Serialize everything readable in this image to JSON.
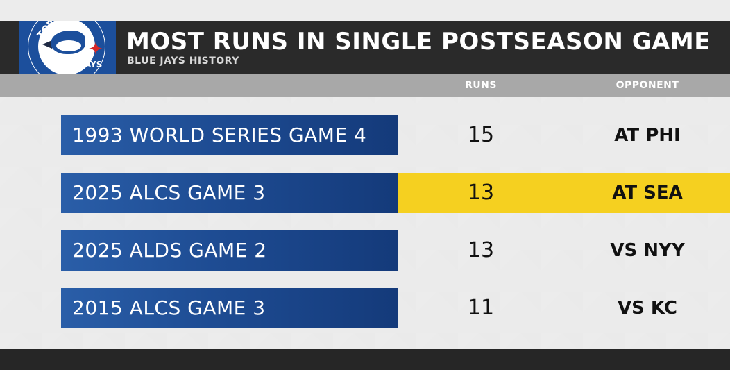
{
  "header": {
    "title": "MOST RUNS IN SINGLE POSTSEASON GAME",
    "subtitle": "BLUE JAYS HISTORY",
    "logo": {
      "word_top": "TOR",
      "word_bottom": "BLUE JAYS",
      "icon": "blue-jays-logo-icon"
    }
  },
  "columns": {
    "runs": "RUNS",
    "opponent": "OPPONENT"
  },
  "rows": [
    {
      "game": "1993 WORLD SERIES GAME 4",
      "runs": "15",
      "opponent": "AT PHI",
      "highlighted": false
    },
    {
      "game": "2025 ALCS GAME 3",
      "runs": "13",
      "opponent": "AT SEA",
      "highlighted": true
    },
    {
      "game": "2025 ALDS GAME 2",
      "runs": "13",
      "opponent": "VS NYY",
      "highlighted": false
    },
    {
      "game": "2015 ALCS GAME 3",
      "runs": "11",
      "opponent": "VS KC",
      "highlighted": false
    }
  ],
  "colors": {
    "label_blue": "#1e4c93",
    "highlight": "#f5d020",
    "header_bg": "#2a2a2a",
    "column_bar": "#a8a8a8"
  }
}
